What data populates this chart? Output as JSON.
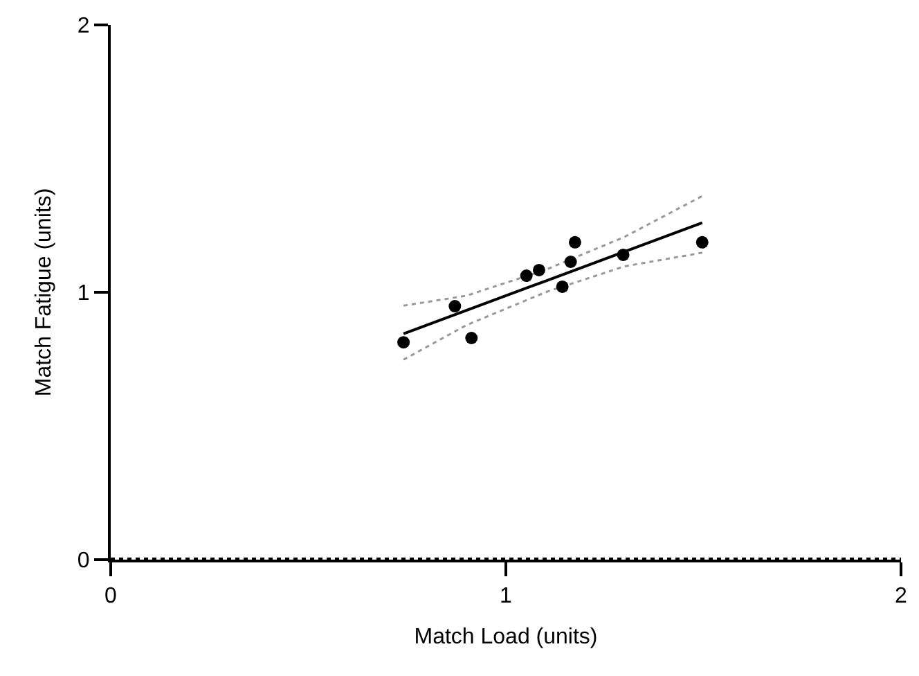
{
  "chart_data": {
    "type": "scatter",
    "xlabel": "Match Load (units)",
    "ylabel": "Match Fatigue (units)",
    "xlim": [
      0,
      2
    ],
    "xticks": [
      0,
      1,
      2
    ],
    "ylim": [
      0,
      2
    ],
    "yticks": [
      0,
      1,
      2
    ],
    "marker": "circle",
    "series": [
      {
        "type": "line",
        "marker": "none",
        "color": "#999999",
        "line_style": "dotted",
        "x": [
          0.741,
          0.9,
          1.1,
          1.3,
          1.497
        ],
        "values": [
          0.95,
          0.987,
          1.084,
          1.207,
          1.36
        ]
      },
      {
        "type": "line",
        "marker": "none",
        "color": "#999999",
        "line_style": "dotted",
        "x": [
          0.741,
          0.9,
          1.1,
          1.3,
          1.497
        ],
        "values": [
          0.748,
          0.877,
          1.0,
          1.097,
          1.148
        ]
      },
      {
        "type": "line",
        "marker": "none",
        "color": "#000000",
        "line_style": "solid",
        "x": [
          0.741,
          0.9,
          1.1,
          1.3,
          1.497
        ],
        "values": [
          0.845,
          0.932,
          1.042,
          1.152,
          1.26
        ]
      },
      {
        "color": "#000000",
        "x": [
          0.741,
          0.871,
          0.913,
          1.052,
          1.084,
          1.143,
          1.164,
          1.175,
          1.297,
          1.497
        ],
        "values": [
          0.813,
          0.948,
          0.829,
          1.062,
          1.083,
          1.021,
          1.114,
          1.187,
          1.14,
          1.187
        ]
      }
    ],
    "ref_lines": [
      {
        "axis": "y",
        "value": 0,
        "line_style": "dotted",
        "color": "#000000"
      }
    ]
  }
}
